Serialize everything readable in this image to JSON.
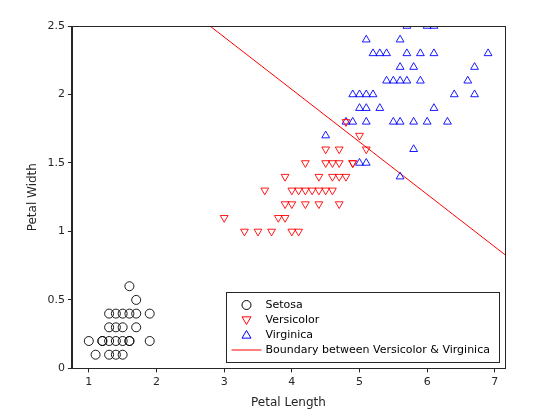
{
  "chart_data": {
    "type": "scatter",
    "x_label": "Petal Length",
    "y_label": "Petal Width",
    "xlim": [
      0.75,
      7.15
    ],
    "ylim": [
      0,
      2.5
    ],
    "xticks": [
      1,
      2,
      3,
      4,
      5,
      6,
      7
    ],
    "yticks": [
      0,
      0.5,
      1,
      1.5,
      2,
      2.5
    ],
    "grid": false,
    "legend": "lower right",
    "series": [
      {
        "name": "Setosa",
        "color": "#000000",
        "marker": "circle",
        "type": "scatter",
        "x": [
          1.4,
          1.3,
          1.5,
          1.7,
          1.4,
          1.5,
          1.4,
          1.1,
          1.2,
          1.5,
          1.3,
          1.7,
          1.5,
          1.0,
          1.7,
          1.9,
          1.6,
          1.6,
          1.6,
          1.9,
          1.3,
          1.2,
          1.6,
          1.4,
          1.3
        ],
        "values": [
          0.2,
          0.2,
          0.2,
          0.4,
          0.3,
          0.1,
          0.1,
          0.1,
          0.2,
          0.4,
          0.4,
          0.3,
          0.3,
          0.2,
          0.5,
          0.2,
          0.2,
          0.4,
          0.6,
          0.4,
          0.3,
          0.2,
          0.2,
          0.4,
          0.1
        ]
      },
      {
        "name": "Versicolor",
        "color": "#ff0000",
        "marker": "triangle_down",
        "type": "scatter",
        "x": [
          4.7,
          4.5,
          4.9,
          4.0,
          4.6,
          4.5,
          4.7,
          3.3,
          4.6,
          3.9,
          3.5,
          4.2,
          4.0,
          3.6,
          4.4,
          4.1,
          3.9,
          4.8,
          4.7,
          4.3,
          4.8,
          5.0,
          3.8,
          3.7,
          3.9,
          5.1,
          4.5,
          4.7,
          4.4,
          4.1,
          4.4,
          4.6,
          4.0,
          4.2,
          3.0,
          4.9,
          4.2
        ],
        "values": [
          1.4,
          1.5,
          1.5,
          1.3,
          1.5,
          1.3,
          1.6,
          1.0,
          1.3,
          1.4,
          1.0,
          1.5,
          1.0,
          1.3,
          1.4,
          1.0,
          1.1,
          1.8,
          1.2,
          1.3,
          1.4,
          1.7,
          1.1,
          1.0,
          1.2,
          1.6,
          1.6,
          1.5,
          1.3,
          1.3,
          1.2,
          1.4,
          1.2,
          1.2,
          1.1,
          1.5,
          1.3
        ]
      },
      {
        "name": "Virginica",
        "color": "#0000ff",
        "marker": "triangle",
        "type": "scatter",
        "x": [
          6.0,
          5.1,
          5.9,
          5.6,
          5.8,
          6.6,
          4.5,
          6.3,
          5.8,
          6.1,
          5.1,
          5.3,
          5.5,
          5.0,
          5.1,
          5.3,
          5.5,
          6.7,
          6.9,
          5.0,
          5.7,
          4.9,
          6.7,
          5.7,
          6.0,
          4.8,
          4.9,
          5.6,
          5.8,
          6.1,
          6.4,
          5.6,
          5.1,
          5.6,
          6.1,
          5.6,
          5.4,
          5.9,
          5.7,
          5.2,
          5.0,
          5.2,
          5.4,
          5.1
        ],
        "values": [
          2.5,
          1.9,
          2.1,
          1.8,
          2.2,
          2.1,
          1.7,
          1.8,
          1.8,
          2.5,
          2.0,
          1.9,
          2.1,
          2.0,
          2.4,
          2.3,
          1.8,
          2.2,
          2.3,
          1.5,
          2.3,
          2.0,
          2.0,
          2.1,
          1.8,
          1.8,
          1.8,
          2.1,
          1.6,
          1.9,
          2.0,
          2.2,
          1.5,
          1.4,
          2.3,
          2.4,
          2.1,
          2.3,
          2.5,
          2.3,
          1.9,
          2.0,
          2.3,
          1.8
        ]
      },
      {
        "name": "Boundary between Versicolor & Virginica",
        "color": "#ff0000",
        "type": "line",
        "line_style": "solid",
        "marker": "none",
        "x": [
          2.79,
          7.15
        ],
        "values": [
          2.5,
          0.83
        ]
      }
    ]
  }
}
